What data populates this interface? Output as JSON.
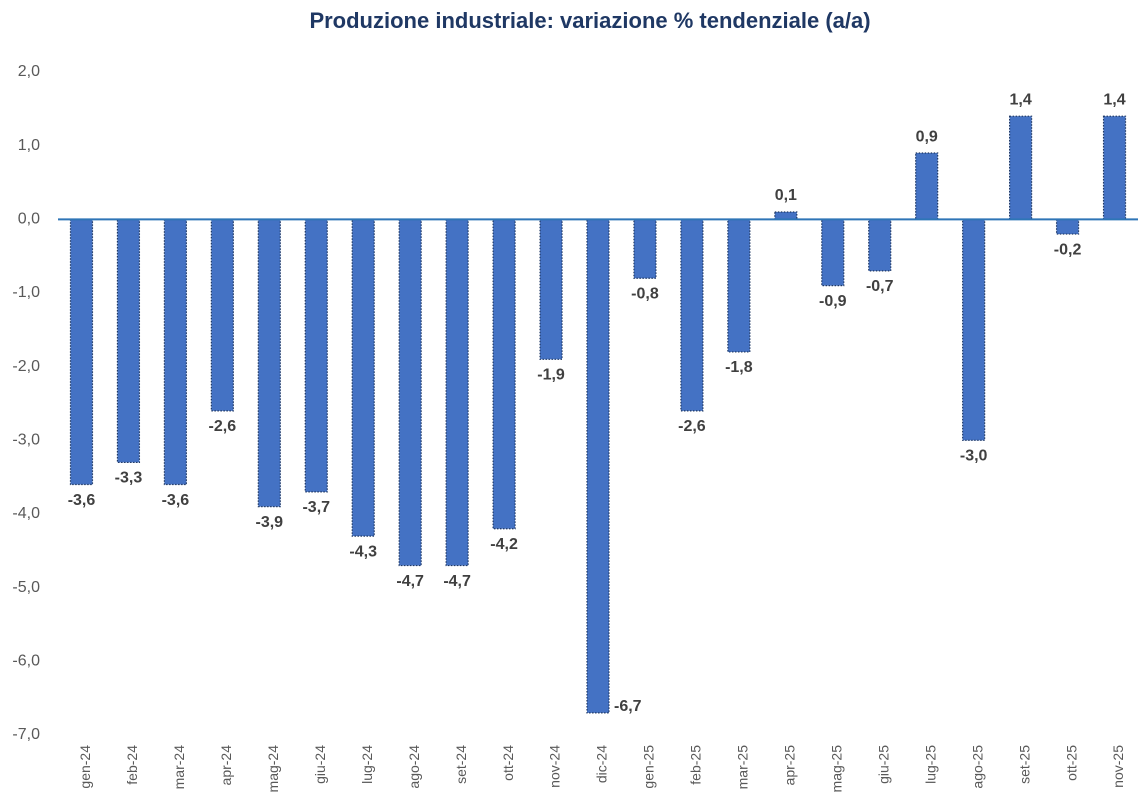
{
  "chart_data": {
    "type": "bar",
    "title": "Produzione industriale: variazione % tendenziale (a/a)",
    "categories": [
      "gen-24",
      "feb-24",
      "mar-24",
      "apr-24",
      "mag-24",
      "giu-24",
      "lug-24",
      "ago-24",
      "set-24",
      "ott-24",
      "nov-24",
      "dic-24",
      "gen-25",
      "feb-25",
      "mar-25",
      "apr-25",
      "mag-25",
      "giu-25",
      "lug-25",
      "ago-25",
      "set-25",
      "ott-25",
      "nov-25"
    ],
    "values": [
      -3.6,
      -3.3,
      -3.6,
      -2.6,
      -3.9,
      -3.7,
      -4.3,
      -4.7,
      -4.7,
      -4.2,
      -1.9,
      -6.7,
      -0.8,
      -2.6,
      -1.8,
      0.1,
      -0.9,
      -0.7,
      0.9,
      -3.0,
      1.4,
      -0.2,
      1.4
    ],
    "value_labels": [
      "-3,6",
      "-3,3",
      "-3,6",
      "-2,6",
      "-3,9",
      "-3,7",
      "-4,3",
      "-4,7",
      "-4,7",
      "-4,2",
      "-1,9",
      "-6,7",
      "-0,8",
      "-2,6",
      "-1,8",
      "0,1",
      "-0,9",
      "-0,7",
      "0,9",
      "-3,0",
      "1,4",
      "-0,2",
      "1,4"
    ],
    "color": "#4472c4",
    "ylim": [
      -7,
      2
    ],
    "yticks": [
      {
        "value": -7,
        "label": "-7,0"
      },
      {
        "value": -6,
        "label": "-6,0"
      },
      {
        "value": -5,
        "label": "-5,0"
      },
      {
        "value": -4,
        "label": "-4,0"
      },
      {
        "value": -3,
        "label": "-3,0"
      },
      {
        "value": -2,
        "label": "-2,0"
      },
      {
        "value": -1,
        "label": "-1,0"
      },
      {
        "value": 0,
        "label": "0,0"
      },
      {
        "value": 1,
        "label": "1,0"
      },
      {
        "value": 2,
        "label": "2,0"
      }
    ],
    "grid": false
  }
}
